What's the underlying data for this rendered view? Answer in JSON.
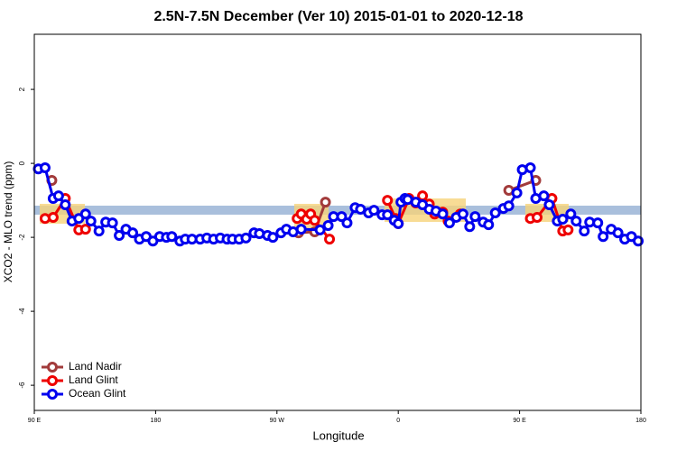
{
  "chart_data": {
    "type": "line",
    "title": "2.5N-7.5N December (Ver 10)   2015-01-01 to 2020-12-18",
    "x_label": "Longitude",
    "y_label": "XCO2 - MLO trend (ppm)",
    "xlim": [
      90,
      540
    ],
    "xticks": [
      {
        "value": 90,
        "label": "90 E"
      },
      180,
      {
        "value": 270,
        "label": "90 W"
      },
      {
        "value": 360,
        "label": "0"
      },
      {
        "value": 450,
        "label": "90 E"
      },
      {
        "value": 540,
        "label": "180"
      }
    ],
    "ylim": [
      -6.68,
      3.49
    ],
    "yticks": [
      -6,
      -4,
      -2,
      0,
      2
    ],
    "legend": "bottom-left",
    "series": [
      {
        "name": "Land Nadir",
        "color": "#a23b3b",
        "x": [
          103,
          null,
          286,
          298,
          306,
          null,
          442,
          462
        ],
        "values": [
          -0.46,
          null,
          -1.88,
          -1.85,
          -1.05,
          null,
          -0.73,
          -0.46
        ]
      },
      {
        "name": "Land Glint",
        "color": "#ee0000",
        "x": [
          98,
          104,
          113,
          123,
          128,
          null,
          285,
          288,
          292,
          295,
          298,
          309,
          null,
          352,
          358,
          360,
          368,
          373,
          378,
          383,
          387,
          393,
          397,
          406,
          null,
          458,
          463,
          474,
          482,
          486
        ],
        "values": [
          -1.49,
          -1.46,
          -0.95,
          -1.8,
          -1.78,
          null,
          -1.49,
          -1.37,
          -1.51,
          -1.37,
          -1.54,
          -2.05,
          null,
          -1.0,
          -1.49,
          -1.63,
          -0.95,
          -1.07,
          -0.88,
          -1.1,
          -1.37,
          -1.32,
          -1.56,
          -1.37,
          null,
          -1.49,
          -1.46,
          -0.95,
          -1.83,
          -1.8
        ]
      },
      {
        "name": "Ocean Glint",
        "color": "#0000ee",
        "x": [
          93,
          98,
          104,
          108,
          113,
          118,
          123,
          128,
          132,
          138,
          143,
          148,
          153,
          158,
          163,
          168,
          173,
          178,
          183,
          188,
          192,
          198,
          202,
          207,
          213,
          218,
          223,
          228,
          233,
          237,
          242,
          247,
          253,
          257,
          263,
          267,
          273,
          277,
          282,
          288,
          302,
          308,
          312,
          318,
          322,
          328,
          332,
          338,
          342,
          348,
          352,
          357,
          360,
          362,
          365,
          367,
          373,
          378,
          383,
          388,
          393,
          398,
          403,
          408,
          413,
          417,
          423,
          427,
          432,
          438,
          442,
          448,
          452,
          458,
          462,
          468,
          472,
          478,
          482,
          488,
          492,
          498,
          502,
          508,
          512,
          518,
          523,
          528,
          533,
          538
        ],
        "values": [
          -0.15,
          -0.12,
          -0.95,
          -0.88,
          -1.12,
          -1.56,
          -1.49,
          -1.37,
          -1.56,
          -1.83,
          -1.59,
          -1.61,
          -1.95,
          -1.78,
          -1.88,
          -2.05,
          -1.98,
          -2.1,
          -1.98,
          -2.0,
          -1.98,
          -2.1,
          -2.05,
          -2.05,
          -2.05,
          -2.02,
          -2.05,
          -2.02,
          -2.05,
          -2.05,
          -2.05,
          -2.02,
          -1.88,
          -1.9,
          -1.95,
          -2.0,
          -1.88,
          -1.78,
          -1.85,
          -1.78,
          -1.8,
          -1.68,
          -1.44,
          -1.44,
          -1.61,
          -1.2,
          -1.24,
          -1.34,
          -1.27,
          -1.39,
          -1.39,
          -1.54,
          -1.63,
          -1.05,
          -0.95,
          -0.98,
          -1.05,
          -1.12,
          -1.24,
          -1.29,
          -1.37,
          -1.61,
          -1.46,
          -1.37,
          -1.71,
          -1.44,
          -1.59,
          -1.66,
          -1.34,
          -1.22,
          -1.15,
          -0.8,
          -0.17,
          -0.12,
          -0.95,
          -0.88,
          -1.12,
          -1.56,
          -1.51,
          -1.37,
          -1.56,
          -1.83,
          -1.59,
          -1.61,
          -1.98,
          -1.78,
          -1.88,
          -2.05,
          -1.98,
          -2.1
        ]
      }
    ]
  }
}
